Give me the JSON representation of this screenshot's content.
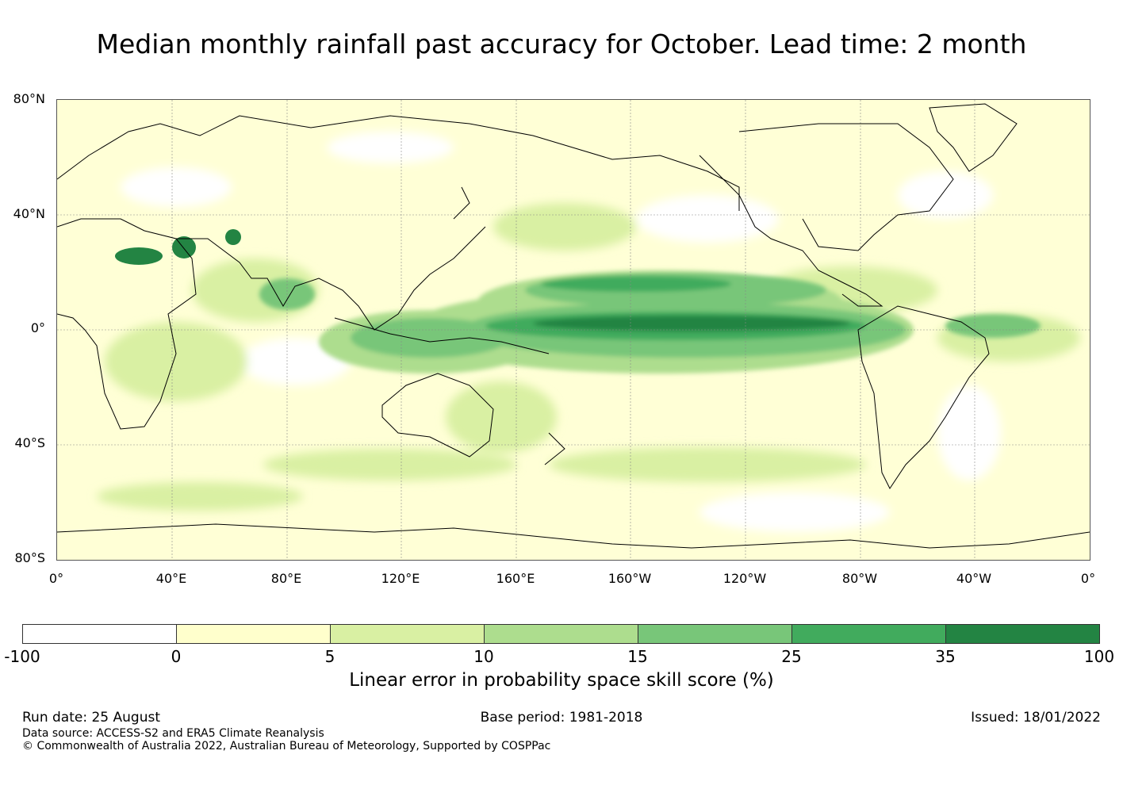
{
  "title": "Median monthly rainfall past accuracy for October. Lead time: 2 month",
  "map": {
    "lat_labels": [
      "80°N",
      "40°N",
      "0°",
      "40°S",
      "80°S"
    ],
    "lon_labels": [
      "0°",
      "40°E",
      "80°E",
      "120°E",
      "160°E",
      "160°W",
      "120°W",
      "80°W",
      "40°W",
      "0°"
    ]
  },
  "colorbar": {
    "ticks": [
      "-100",
      "0",
      "5",
      "10",
      "15",
      "25",
      "35",
      "100"
    ],
    "colors": [
      "#ffffff",
      "#ffffcc",
      "#d9f0a3",
      "#addd8e",
      "#78c679",
      "#41ab5d",
      "#238443"
    ],
    "label": "Linear error in probability space skill score (%)"
  },
  "footer": {
    "run_date": "Run date: 25 August",
    "base_period": "Base period: 1981-2018",
    "issued": "Issued: 18/01/2022",
    "data_source": "Data source: ACCESS-S2 and ERA5 Climate Reanalysis",
    "copyright": "© Commonwealth of Australia 2022, Australian Bureau of Meteorology, Supported by COSPPac"
  }
}
